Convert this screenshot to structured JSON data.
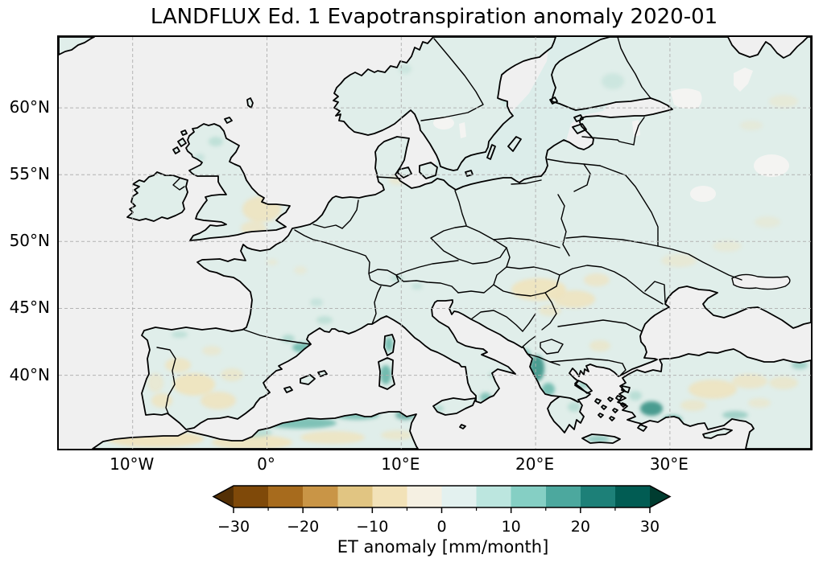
{
  "figure": {
    "title": "LANDFLUX Ed. 1 Evapotranspiration anomaly 2020-01",
    "background_color": "#ffffff"
  },
  "map": {
    "projection": "PlateCarree",
    "extent": {
      "lon_min": -15.5,
      "lon_max": 40.5,
      "lat_min": 34.5,
      "lat_max": 65.3
    },
    "x_ticks": [
      {
        "label": "10°W",
        "lon": -10
      },
      {
        "label": "0°",
        "lon": 0
      },
      {
        "label": "10°E",
        "lon": 10
      },
      {
        "label": "20°E",
        "lon": 20
      },
      {
        "label": "30°E",
        "lon": 30
      }
    ],
    "y_ticks": [
      {
        "label": "60°N",
        "lat": 60
      },
      {
        "label": "55°N",
        "lat": 55
      },
      {
        "label": "50°N",
        "lat": 50
      },
      {
        "label": "45°N",
        "lat": 45
      },
      {
        "label": "40°N",
        "lat": 40
      }
    ],
    "ocean_color": "#f0f0f0",
    "land_base_color": "#e0eeea",
    "coastline_color": "#000000",
    "gridline_color": "#b0b0b0",
    "lake_color": "#f4f4f2"
  },
  "colorbar": {
    "label": "ET anomaly [mm/month]",
    "orientation": "horizontal",
    "extend": "both",
    "levels": [
      -30,
      -25,
      -20,
      -15,
      -10,
      -5,
      0,
      5,
      10,
      15,
      20,
      25,
      30
    ],
    "major_ticks": [
      -30,
      -20,
      -10,
      0,
      10,
      20,
      30
    ],
    "major_tick_labels": [
      "−30",
      "−20",
      "−10",
      "0",
      "10",
      "20",
      "30"
    ],
    "minor_ticks": [
      -25,
      -15,
      -5,
      5,
      15,
      25
    ],
    "colors": [
      "#543005",
      "#7f4909",
      "#a76b1d",
      "#c99546",
      "#e1c582",
      "#f2e2b8",
      "#f5f0e2",
      "#e3f1ef",
      "#bce6df",
      "#85cfc4",
      "#4ca89e",
      "#1d8078",
      "#015c53",
      "#003c30"
    ]
  },
  "chart_data": {
    "type": "heatmap",
    "title": "LANDFLUX Ed. 1 Evapotranspiration anomaly 2020-01",
    "variable": "Evapotranspiration anomaly",
    "unit": "mm/month",
    "colorbar_label": "ET anomaly [mm/month]",
    "value_range": [
      -30,
      30
    ],
    "colormap": "BrBG (brown = negative, teal = positive)",
    "region": "Europe, North Africa and Anatolia",
    "extent": {
      "lon": [
        -15.5,
        40.5
      ],
      "lat": [
        34.5,
        65.3
      ]
    },
    "regions_estimated_anomaly_mm_month": [
      {
        "region": "England (British Isles)",
        "value": -3
      },
      {
        "region": "Scotland and Ireland",
        "value": 2
      },
      {
        "region": "Interior Spain and Portugal",
        "value": -4
      },
      {
        "region": "Catalonia / eastern Pyrenees",
        "value": 7
      },
      {
        "region": "France and Central Europe",
        "value": 2
      },
      {
        "region": "Pannonian Basin (Hungary / Romania)",
        "value": -5
      },
      {
        "region": "Western Greece and Albania coast",
        "value": 9
      },
      {
        "region": "Sardinia and Corsica",
        "value": 7
      },
      {
        "region": "Southwestern Turkey",
        "value": 10
      },
      {
        "region": "Central Anatolia",
        "value": -4
      },
      {
        "region": "Scandinavia and Baltic",
        "value": 2
      },
      {
        "region": "Eastern Europe / western Russia",
        "value": 2
      },
      {
        "region": "Algerian / Tunisian coast",
        "value": 7
      },
      {
        "region": "Sahara margin (southern edge)",
        "value": -5
      }
    ],
    "no_data_color_areas": [
      "Mediterranean Sea",
      "Black Sea",
      "Atlantic Ocean",
      "North Sea",
      "large lakes"
    ]
  }
}
